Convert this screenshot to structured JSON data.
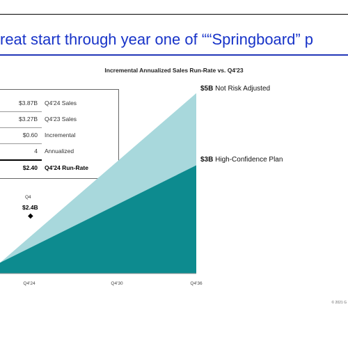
{
  "slide": {
    "title": "reat start through year one of ““Springboard” p",
    "footer": "© 2021 G"
  },
  "calc_table": {
    "rows": [
      {
        "value": "$3.87B",
        "label": "Q4'24 Sales"
      },
      {
        "value": "$3.27B",
        "label": "Q4'23 Sales"
      },
      {
        "value": "$0.60",
        "label": "Incremental"
      },
      {
        "value": "4",
        "label": "Annualized"
      },
      {
        "value": "$2.40",
        "label": "Q4'24 Run-Rate"
      }
    ]
  },
  "marker": {
    "label": "Q4",
    "value": "$2.4B",
    "symbol": "◆"
  },
  "chart_data": {
    "type": "area",
    "title": "Incremental Annualized Sales Run-Rate vs. Q4'23",
    "x": [
      "Q4'24",
      "Q4'30",
      "Q4'36"
    ],
    "ylim": [
      0,
      5.5
    ],
    "series": [
      {
        "name": "High-Confidence Plan",
        "amount": "$3B",
        "values": [
          0.3,
          1.65,
          3.0
        ],
        "color": "#0d8b8f"
      },
      {
        "name": "Not Risk Adjusted",
        "amount": "$5B",
        "values": [
          0.3,
          2.65,
          5.0
        ],
        "color": "#a8d8dc"
      }
    ],
    "grid": false,
    "legend": "right"
  }
}
